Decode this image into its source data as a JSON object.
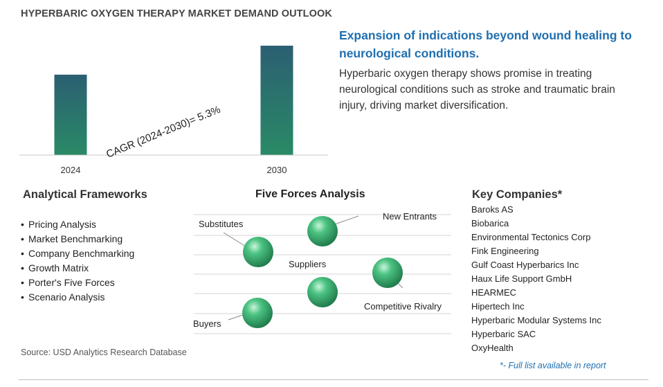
{
  "title": "HYPERBARIC OXYGEN THERAPY MARKET DEMAND OUTLOOK",
  "chart_data": {
    "type": "bar",
    "categories": [
      "2024",
      "2030"
    ],
    "values": [
      100,
      136
    ],
    "annotation": "CAGR (2024-2030)=  5.3%",
    "grid": false,
    "yaxis_visible": false
  },
  "insight": {
    "heading": "Expansion of indications beyond wound healing to neurological conditions.",
    "body": "Hyperbaric oxygen therapy shows promise in treating neurological conditions such as stroke and traumatic brain injury, driving market diversification."
  },
  "frameworks": {
    "title": "Analytical Frameworks",
    "items": [
      "Pricing Analysis",
      "Market Benchmarking",
      "Company Benchmarking",
      "Growth Matrix",
      "Porter's Five Forces",
      "Scenario Analysis"
    ]
  },
  "five_forces": {
    "title": "Five Forces Analysis",
    "labels": {
      "substitutes": "Substitutes",
      "new_entrants": "New Entrants",
      "suppliers": "Suppliers",
      "competitive_rivalry": "Competitive Rivalry",
      "buyers": "Buyers"
    }
  },
  "companies": {
    "title": "Key Companies*",
    "items": [
      "Baroks AS",
      "Biobarica",
      "Environmental Tectonics Corp",
      "Fink Engineering",
      "Gulf Coast Hyperbarics Inc",
      "Haux Life Support GmbH",
      "HEARMEC",
      "Hipertech Inc",
      "Hyperbaric Modular Systems Inc",
      "Hyperbaric SAC",
      "OxyHealth"
    ],
    "note": "*- Full list available in report"
  },
  "source": "Source: USD Analytics Research Database",
  "colors": {
    "title": "#444444",
    "accent_blue": "#1f6fb0",
    "bar_top": "#2b5f72",
    "bar_bottom": "#2a8a66",
    "sphere": "#3bb273"
  }
}
